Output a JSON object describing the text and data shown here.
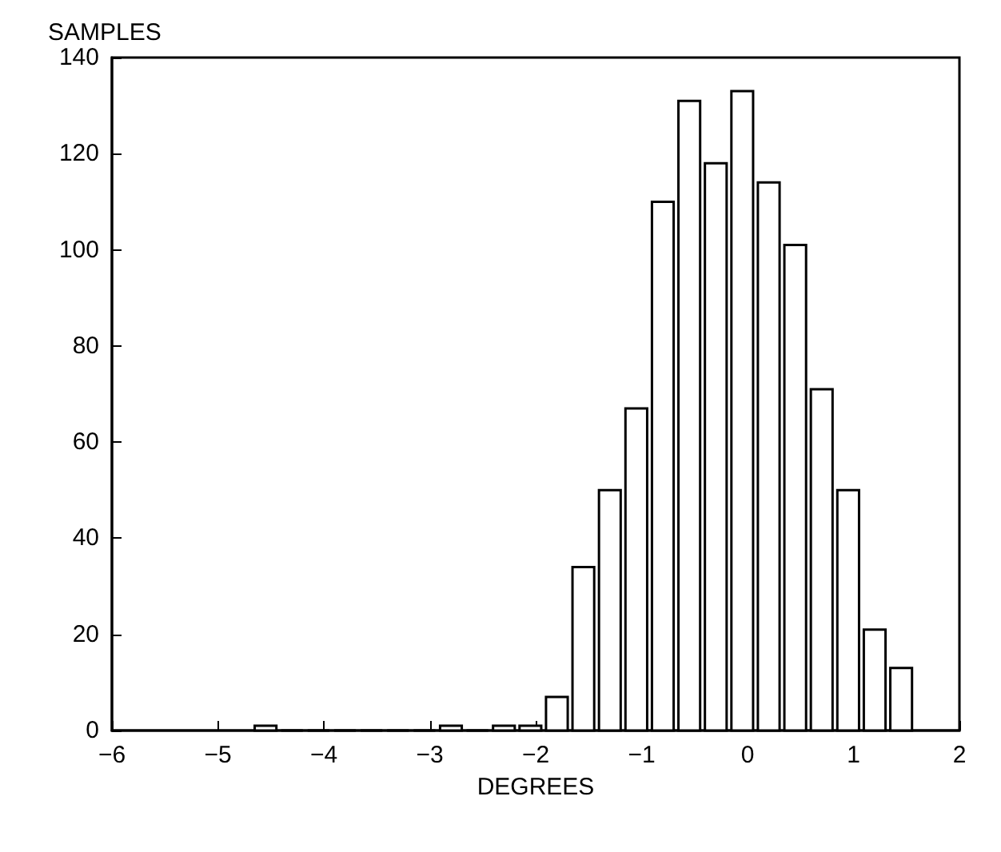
{
  "chart_data": {
    "type": "histogram",
    "xlabel": "DEGREES",
    "ylabel": "SAMPLES",
    "bins": [
      -4.675,
      -4.425,
      -4.175,
      -3.925,
      -3.675,
      -3.425,
      -3.175,
      -2.925,
      -2.675,
      -2.425,
      -2.175,
      -1.925,
      -1.675,
      -1.425,
      -1.175,
      -0.925,
      -0.675,
      -0.425,
      -0.175,
      0.075,
      0.325,
      0.575,
      0.825,
      1.075,
      1.325,
      1.575
    ],
    "values": [
      1,
      0,
      0,
      0,
      0,
      0,
      0,
      1,
      0,
      1,
      1,
      7,
      34,
      50,
      67,
      110,
      131,
      118,
      133,
      114,
      101,
      71,
      50,
      21,
      13
    ],
    "color": "#ffffff",
    "xlim": [
      -6,
      2
    ],
    "xticks": [
      -6,
      -5,
      -4,
      -3,
      -2,
      -1,
      0,
      1,
      2
    ],
    "ylim": [
      0,
      140
    ],
    "yticks": [
      0,
      20,
      40,
      60,
      80,
      100,
      120,
      140
    ],
    "grid": false
  }
}
